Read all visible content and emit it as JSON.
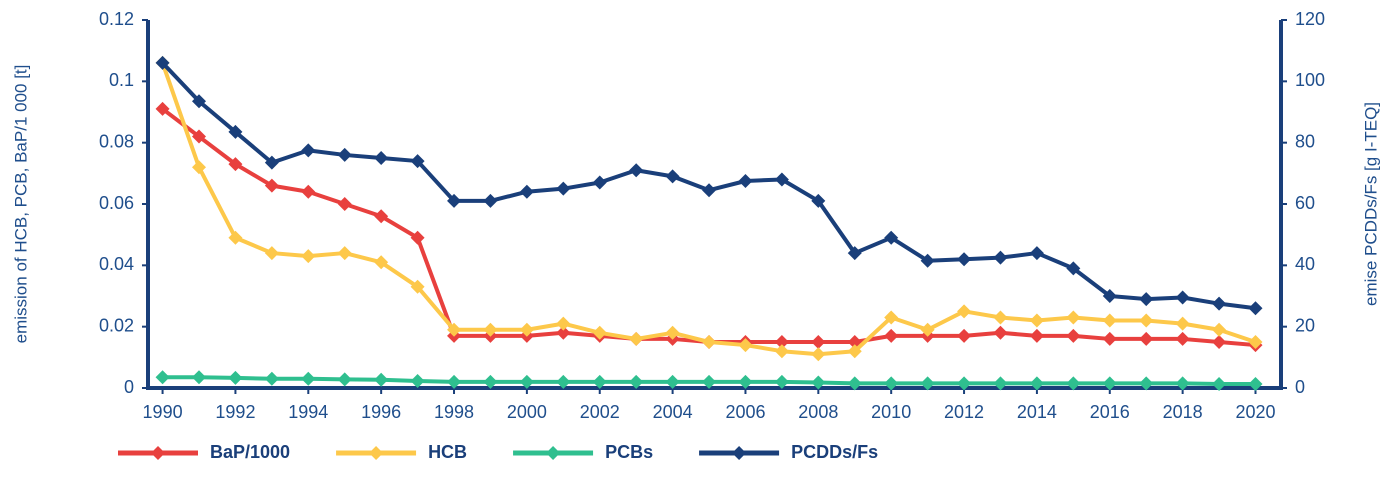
{
  "chart_data": {
    "type": "line",
    "ylabel": "emission of HCB, PCB, BaP/1 000 [t]",
    "y2label": "emise PCDDs/Fs [g I-TEQ]",
    "x": [
      1990,
      1991,
      1992,
      1993,
      1994,
      1995,
      1996,
      1997,
      1998,
      1999,
      2000,
      2001,
      2002,
      2003,
      2004,
      2005,
      2006,
      2007,
      2008,
      2009,
      2010,
      2011,
      2012,
      2013,
      2014,
      2015,
      2016,
      2017,
      2018,
      2019,
      2020
    ],
    "xlim": [
      1989.6,
      2020.7
    ],
    "xticks": [
      1990,
      1992,
      1994,
      1996,
      1998,
      2000,
      2002,
      2004,
      2006,
      2008,
      2010,
      2012,
      2014,
      2016,
      2018,
      2020
    ],
    "ylim": [
      0,
      0.12
    ],
    "yticks": [
      0,
      0.02,
      0.04,
      0.06,
      0.08,
      0.1,
      0.12
    ],
    "y2lim": [
      0,
      120
    ],
    "y2ticks": [
      0,
      20,
      40,
      60,
      80,
      100,
      120
    ],
    "legend": "bottom",
    "series": [
      {
        "name": "BaP/1000",
        "color": "#e8403e",
        "values": [
          0.091,
          0.082,
          0.073,
          0.066,
          0.064,
          0.06,
          0.056,
          0.049,
          0.017,
          0.017,
          0.017,
          0.018,
          0.017,
          0.016,
          0.016,
          0.015,
          0.015,
          0.015,
          0.015,
          0.015,
          0.017,
          0.017,
          0.017,
          0.018,
          0.017,
          0.017,
          0.016,
          0.016,
          0.016,
          0.015,
          0.014
        ]
      },
      {
        "name": "HCB",
        "color": "#fdc84a",
        "values": [
          0.106,
          0.072,
          0.049,
          0.044,
          0.043,
          0.044,
          0.041,
          0.033,
          0.019,
          0.019,
          0.019,
          0.021,
          0.018,
          0.016,
          0.018,
          0.015,
          0.014,
          0.012,
          0.011,
          0.012,
          0.023,
          0.019,
          0.025,
          0.023,
          0.022,
          0.023,
          0.022,
          0.022,
          0.021,
          0.019,
          0.015
        ]
      },
      {
        "name": "PCBs",
        "color": "#2fbf8f",
        "values": [
          0.0035,
          0.0035,
          0.0033,
          0.003,
          0.003,
          0.0028,
          0.0027,
          0.0023,
          0.002,
          0.002,
          0.002,
          0.002,
          0.002,
          0.002,
          0.002,
          0.002,
          0.002,
          0.002,
          0.0018,
          0.0015,
          0.0015,
          0.0015,
          0.0015,
          0.0015,
          0.0015,
          0.0015,
          0.0015,
          0.0015,
          0.0015,
          0.0013,
          0.0013
        ]
      },
      {
        "name": "PCDDs/Fs",
        "color": "#1a3f7a",
        "axis": "y2",
        "values": [
          106,
          93.5,
          83.5,
          73.5,
          77.5,
          76,
          75,
          74,
          61,
          61,
          64,
          65,
          67,
          71,
          69,
          64.5,
          67.5,
          68,
          61,
          44,
          49,
          41.5,
          42,
          42.5,
          44,
          39,
          30,
          29,
          29.5,
          27.5,
          26
        ]
      }
    ]
  }
}
